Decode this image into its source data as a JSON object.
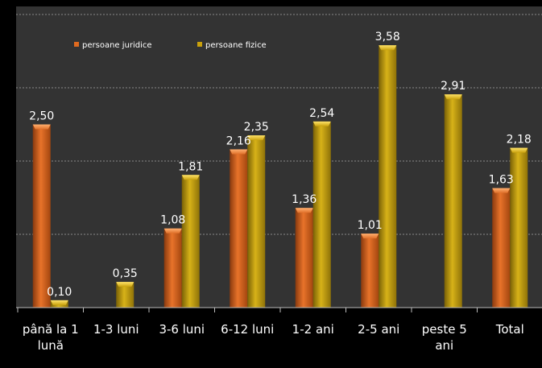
{
  "chart_data": {
    "type": "bar",
    "categories": [
      "până la 1 lună",
      "1-3 luni",
      "3-6 luni",
      "6-12 luni",
      "1-2 ani",
      "2-5 ani",
      "peste 5 ani",
      "Total"
    ],
    "category_lines": [
      [
        "până la 1",
        "lună"
      ],
      [
        "1-3 luni"
      ],
      [
        "3-6 luni"
      ],
      [
        "6-12 luni"
      ],
      [
        "1-2 ani"
      ],
      [
        "2-5 ani"
      ],
      [
        "peste 5",
        "ani"
      ],
      [
        "Total"
      ]
    ],
    "series": [
      {
        "name": "persoane juridice",
        "values": [
          2.5,
          null,
          1.08,
          2.16,
          1.36,
          1.01,
          null,
          1.63
        ],
        "labels": [
          "2,50",
          "",
          "1,08",
          "2,16",
          "1,36",
          "1,01",
          "",
          "1,63"
        ],
        "color": "#e06a1f"
      },
      {
        "name": "persoane fizice",
        "values": [
          0.1,
          0.35,
          1.81,
          2.35,
          2.54,
          3.58,
          2.91,
          2.18
        ],
        "labels": [
          "0,10",
          "0,35",
          "1,81",
          "2,35",
          "2,54",
          "3,58",
          "2,91",
          "2,18"
        ],
        "color": "#c9a10c"
      }
    ],
    "ylim": [
      0,
      4
    ],
    "grid": true,
    "legend_position": "top-left",
    "background": "#333333"
  }
}
